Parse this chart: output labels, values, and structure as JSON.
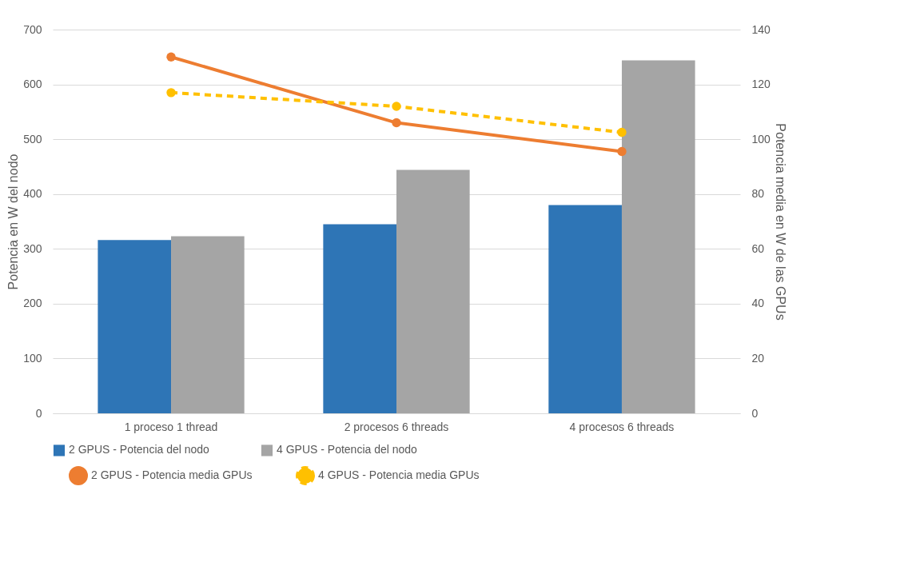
{
  "chart_data": {
    "type": "bar",
    "categories": [
      "1 proceso 1 thread",
      "2 procesos 6 threads",
      "4 procesos 6 threads"
    ],
    "ylabel": "Potencia en W del nodo",
    "y2label": "Potencia media en W de las GPUs",
    "ylim": [
      0,
      700
    ],
    "yticks": [
      0,
      100,
      200,
      300,
      400,
      500,
      600,
      700
    ],
    "y2lim": [
      0,
      140
    ],
    "y2ticks": [
      0,
      20,
      40,
      60,
      80,
      100,
      120,
      140
    ],
    "grid": "y",
    "legend": "bottom",
    "series": [
      {
        "name": "2 GPUS -  Potencia del nodo",
        "color": "#2e75b6",
        "values": [
          316,
          345,
          380
        ]
      },
      {
        "name": "4 GPUS -  Potencia del nodo",
        "color": "#a5a5a5",
        "values": [
          323,
          444,
          644
        ]
      },
      {
        "name": "2 GPUS -  Potencia media GPUs",
        "type": "line",
        "axis": "y2",
        "color": "#ed7d31",
        "line_style": "solid",
        "marker": "circle",
        "values": [
          130,
          106,
          95.5
        ]
      },
      {
        "name": "4 GPUS -  Potencia media GPUs",
        "type": "line",
        "axis": "y2",
        "color": "#ffc000",
        "line_style": "dashed",
        "marker": "circle",
        "values": [
          117,
          112,
          102.5
        ]
      }
    ]
  }
}
